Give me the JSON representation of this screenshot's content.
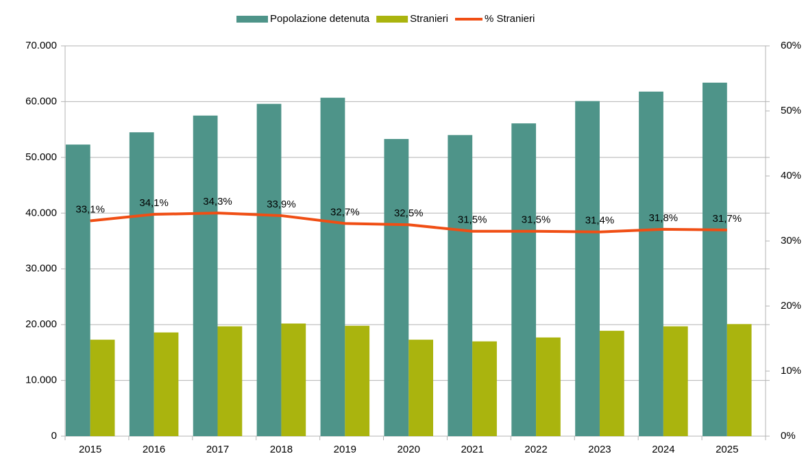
{
  "chart_data": {
    "type": "bar",
    "categories": [
      "2015",
      "2016",
      "2017",
      "2018",
      "2019",
      "2020",
      "2021",
      "2022",
      "2023",
      "2024",
      "2025"
    ],
    "series": [
      {
        "name": "Popolazione detenuta",
        "color": "#4e9489",
        "values": [
          52300,
          54500,
          57500,
          59600,
          60700,
          53300,
          54000,
          56100,
          60100,
          61800,
          63400
        ]
      },
      {
        "name": "Stranieri",
        "color": "#aab40e",
        "values": [
          17300,
          18600,
          19700,
          20200,
          19800,
          17300,
          17000,
          17700,
          18900,
          19700,
          20100
        ]
      },
      {
        "name": "% Stranieri",
        "color": "#f04e14",
        "type": "line",
        "axis": "y2",
        "values": [
          33.1,
          34.1,
          34.3,
          33.9,
          32.7,
          32.5,
          31.5,
          31.5,
          31.4,
          31.8,
          31.7
        ],
        "value_labels": [
          "33,1%",
          "34,1%",
          "34,3%",
          "33,9%",
          "32,7%",
          "32,5%",
          "31,5%",
          "31,5%",
          "31,4%",
          "31,8%",
          "31,7%"
        ]
      }
    ],
    "ylim": [
      0,
      70000
    ],
    "yticks": [
      0,
      {
        "value": 10000,
        "label": "10.000"
      },
      {
        "value": 20000,
        "label": "20.000"
      },
      {
        "value": 30000,
        "label": "30.000"
      },
      {
        "value": 40000,
        "label": "40.000"
      },
      {
        "value": 50000,
        "label": "50.000"
      },
      {
        "value": 60000,
        "label": "60.000"
      },
      {
        "value": 70000,
        "label": "70.000"
      }
    ],
    "y2lim": [
      0,
      60
    ],
    "y2ticks": [
      {
        "value": 0,
        "label": "0%"
      },
      {
        "value": 10,
        "label": "10%"
      },
      {
        "value": 20,
        "label": "20%"
      },
      {
        "value": 30,
        "label": "30%"
      },
      {
        "value": 40,
        "label": "40%"
      },
      {
        "value": 50,
        "label": "50%"
      },
      {
        "value": 60,
        "label": "60%"
      }
    ],
    "grid": true,
    "legend": "top"
  }
}
